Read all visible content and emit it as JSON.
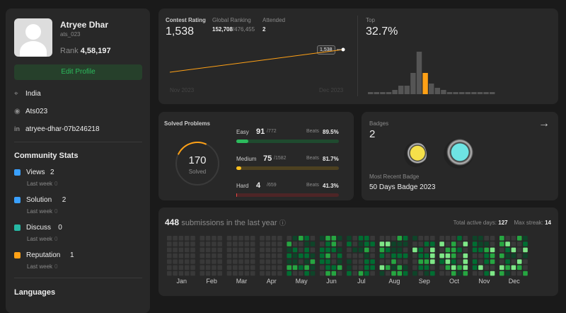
{
  "profile": {
    "name": "Atryee Dhar",
    "username": "ats_023",
    "rank_label": "Rank",
    "rank": "4,58,197",
    "edit": "Edit Profile",
    "location": "India",
    "github": "Ats023",
    "linkedin": "atryee-dhar-07b246218"
  },
  "community": {
    "title": "Community Stats",
    "items": [
      {
        "label": "Views",
        "value": "2",
        "week": "Last week",
        "delta": "0"
      },
      {
        "label": "Solution",
        "value": "2",
        "week": "Last week",
        "delta": "0"
      },
      {
        "label": "Discuss",
        "value": "0",
        "week": "Last week",
        "delta": "0"
      },
      {
        "label": "Reputation",
        "value": "1",
        "week": "Last week",
        "delta": "0"
      }
    ],
    "languages": "Languages"
  },
  "contest": {
    "rating_label": "Contest Rating",
    "rating": "1,538",
    "global_label": "Global Ranking",
    "global": "152,708",
    "global_total": "/476,455",
    "attended_label": "Attended",
    "attended": "2",
    "tooltip": "1,538",
    "x_start": "Nov 2023",
    "x_end": "Dec 2023",
    "top_label": "Top",
    "top": "32.7%",
    "histogram": [
      1,
      1,
      1,
      1,
      2,
      4,
      4,
      10,
      20,
      10,
      5,
      3,
      2,
      1,
      1,
      1,
      1,
      1,
      1,
      1,
      1
    ],
    "highlight": 9
  },
  "solved": {
    "title": "Solved Problems",
    "count": "170",
    "count_label": "Solved",
    "levels": [
      {
        "name": "Easy",
        "solved": "91",
        "total": "/772",
        "beats_label": "Beats",
        "beats": "89.5%",
        "color": "#2cbb5d",
        "track": "#1f4a2f"
      },
      {
        "name": "Medium",
        "solved": "75",
        "total": "/1582",
        "beats_label": "Beats",
        "beats": "81.7%",
        "color": "#ffc01e",
        "track": "#4d4120"
      },
      {
        "name": "Hard",
        "solved": "4",
        "total": "/659",
        "beats_label": "Beats",
        "beats": "41.3%",
        "color": "#ef4743",
        "track": "#4d2526"
      }
    ]
  },
  "badges": {
    "title": "Badges",
    "count": "2",
    "recent_label": "Most Recent Badge",
    "recent": "50 Days Badge 2023"
  },
  "submissions": {
    "count": "448",
    "label": "submissions in the last year",
    "active_label": "Total active days:",
    "active": "127",
    "streak_label": "Max streak:",
    "streak": "14",
    "months": [
      "Jan",
      "Feb",
      "Mar",
      "Apr",
      "May",
      "Jun",
      "Jul",
      "Aug",
      "Sep",
      "Oct",
      "Nov",
      "Dec"
    ]
  }
}
